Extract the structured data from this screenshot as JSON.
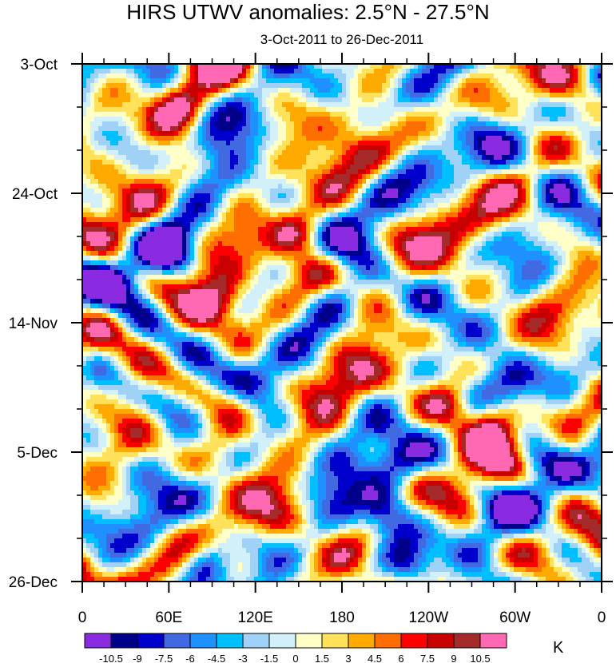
{
  "chart_data": {
    "type": "heatmap",
    "title": "HIRS UTWV anomalies: 2.5°N - 27.5°N",
    "subtitle": "3-Oct-2011 to 26-Dec-2011",
    "xlabel": "",
    "ylabel": "",
    "x_ticks": [
      "0",
      "60E",
      "120E",
      "180",
      "120W",
      "60W",
      "0"
    ],
    "x_tick_values": [
      0,
      60,
      120,
      180,
      240,
      300,
      360
    ],
    "x_range": [
      0,
      360
    ],
    "y_ticks": [
      "3-Oct",
      "24-Oct",
      "14-Nov",
      "5-Dec",
      "26-Dec"
    ],
    "y_tick_values": [
      0,
      21,
      42,
      63,
      84
    ],
    "y_range": [
      0,
      84
    ],
    "colorbar": {
      "unit": "K",
      "levels": [
        "-10.5",
        "-9",
        "-7.5",
        "-6",
        "-4.5",
        "-3",
        "-1.5",
        "0",
        "1.5",
        "3",
        "4.5",
        "6",
        "7.5",
        "9",
        "10.5"
      ],
      "colors": [
        "#8a2be2",
        "#00008b",
        "#0000cd",
        "#4169e1",
        "#1e90ff",
        "#00bfff",
        "#a0d2f7",
        "#d2f0fa",
        "#ffffc8",
        "#ffe15a",
        "#ffaa00",
        "#ff6e00",
        "#ff0000",
        "#c80000",
        "#a52a2a",
        "#ff69b4"
      ]
    }
  }
}
